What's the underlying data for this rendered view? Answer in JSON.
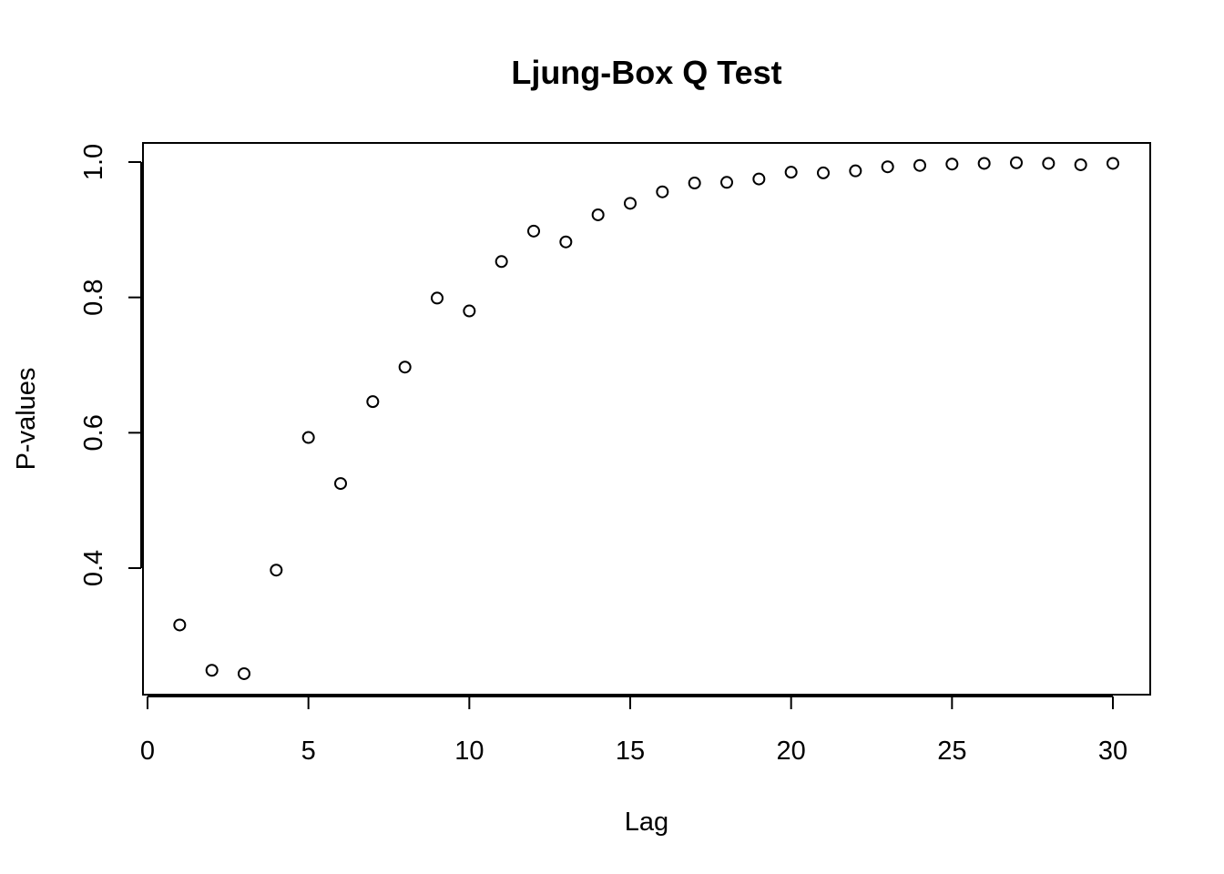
{
  "chart_data": {
    "type": "scatter",
    "title": "Ljung-Box Q Test",
    "xlabel": "Lag",
    "ylabel": "P-values",
    "xlim": [
      0,
      30
    ],
    "ylim": [
      0.24,
      1.0
    ],
    "x_ticks": [
      0,
      5,
      10,
      15,
      20,
      25,
      30
    ],
    "y_ticks": [
      0.4,
      0.6,
      0.8,
      1.0
    ],
    "x_tick_labels": [
      "0",
      "5",
      "10",
      "15",
      "20",
      "25",
      "30"
    ],
    "y_tick_labels": [
      "0.4",
      "0.6",
      "0.8",
      "1.0"
    ],
    "grid": false,
    "legend": "none",
    "marker": "open-circle",
    "x": [
      1,
      2,
      3,
      4,
      5,
      6,
      7,
      8,
      9,
      10,
      11,
      12,
      13,
      14,
      15,
      16,
      17,
      18,
      19,
      20,
      21,
      22,
      23,
      24,
      25,
      26,
      27,
      28,
      29,
      30
    ],
    "y": [
      0.316,
      0.249,
      0.244,
      0.397,
      0.593,
      0.525,
      0.646,
      0.697,
      0.799,
      0.78,
      0.853,
      0.898,
      0.882,
      0.922,
      0.939,
      0.956,
      0.969,
      0.97,
      0.975,
      0.985,
      0.984,
      0.987,
      0.993,
      0.995,
      0.997,
      0.998,
      0.999,
      0.998,
      0.996,
      0.998
    ]
  }
}
